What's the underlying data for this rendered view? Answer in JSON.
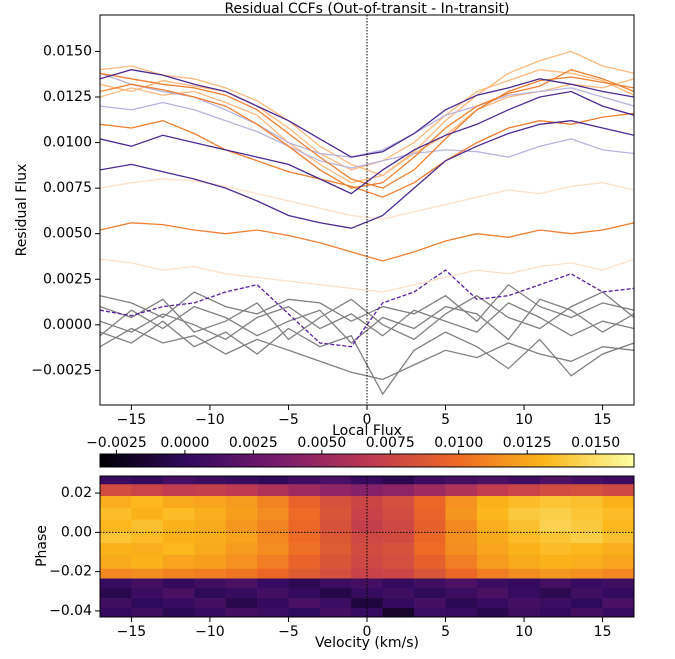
{
  "chart_data": [
    {
      "type": "line",
      "title": "Residual CCFs (Out-of-transit - In-transit)",
      "ylabel": "Residual Flux",
      "x": [
        -17,
        -15,
        -13,
        -11,
        -9,
        -7,
        -5,
        -3,
        -1,
        1,
        3,
        5,
        7,
        9,
        11,
        13,
        15,
        17
      ],
      "xlim": [
        -17,
        17
      ],
      "ylim": [
        -0.0044,
        0.017
      ],
      "xticks": [
        {
          "value": -15,
          "label": "−15"
        },
        {
          "value": -10,
          "label": "−10"
        },
        {
          "value": -5,
          "label": "−5"
        },
        0,
        5,
        10,
        15
      ],
      "yticks": [
        {
          "value": -0.0025,
          "label": "−0.0025"
        },
        {
          "value": 0,
          "label": "0.0000"
        },
        {
          "value": 0.0025,
          "label": "0.0025"
        },
        {
          "value": 0.005,
          "label": "0.0050"
        },
        {
          "value": 0.0075,
          "label": "0.0075"
        },
        {
          "value": 0.01,
          "label": "0.0100"
        },
        {
          "value": 0.0125,
          "label": "0.0125"
        },
        {
          "value": 0.015,
          "label": "0.0150"
        }
      ],
      "vline": 0,
      "series": [
        {
          "color": "#808080",
          "values": [
            0.0002,
            -0.0004,
            0.0006,
            0.0,
            -0.0008,
            0.0004,
            0.001,
            -0.0002,
            0.0006,
            -0.0006,
            0.0008,
            0.0002,
            -0.0004,
            0.0012,
            0.0004,
            -0.0006,
            0.0002,
            -0.0002
          ]
        },
        {
          "color": "#808080",
          "values": [
            -0.0006,
            0.0008,
            -0.0002,
            0.001,
            0.0004,
            -0.0006,
            0.0002,
            0.0008,
            -0.001,
            0.0004,
            -0.0002,
            0.001,
            0.0006,
            -0.0008,
            0.0014,
            0.0008,
            -0.0004,
            0.0006
          ]
        },
        {
          "color": "#808080",
          "values": [
            0.001,
            0.0004,
            0.0014,
            -0.0004,
            0.0002,
            0.0012,
            -0.0008,
            0.0004,
            0.0014,
            0.0,
            -0.0008,
            0.0006,
            0.0016,
            0.0004,
            -0.0002,
            0.001,
            0.0018,
            0.0004
          ]
        },
        {
          "color": "#808080",
          "values": [
            -0.0012,
            -0.0002,
            -0.001,
            -0.0006,
            -0.0016,
            -0.0008,
            -0.0014,
            -0.002,
            -0.0026,
            -0.003,
            -0.0022,
            -0.0014,
            -0.0018,
            -0.001,
            -0.0016,
            -0.002,
            -0.0012,
            -0.0014
          ]
        },
        {
          "color": "#808080",
          "values": [
            0.0016,
            0.0012,
            0.0004,
            0.0018,
            0.001,
            0.0006,
            0.0014,
            0.0012,
            0.0002,
            0.001,
            0.0006,
            0.0016,
            0.0002,
            0.0022,
            0.001,
            0.0004,
            0.0012,
            0.0008
          ]
        },
        {
          "color": "#808080",
          "values": [
            -0.0004,
            -0.001,
            0.0002,
            -0.0012,
            -0.0004,
            -0.0016,
            -0.0002,
            -0.0012,
            -0.0006,
            -0.0038,
            -0.0014,
            -0.0004,
            -0.0012,
            -0.0024,
            -0.0008,
            -0.0028,
            -0.0016,
            -0.001
          ]
        },
        {
          "color": "#5a1fa0",
          "dashed": true,
          "values": [
            0.0008,
            0.0005,
            0.001,
            0.0012,
            0.0018,
            0.0022,
            0.0006,
            -0.001,
            -0.0012,
            0.0012,
            0.0018,
            0.003,
            0.0014,
            0.0016,
            0.0022,
            0.0028,
            0.0018,
            0.002
          ]
        },
        {
          "color": "#fde0c8",
          "values": [
            0.0075,
            0.0078,
            0.008,
            0.0079,
            0.0076,
            0.0072,
            0.0068,
            0.0064,
            0.006,
            0.0058,
            0.0062,
            0.0066,
            0.007,
            0.0074,
            0.0072,
            0.0076,
            0.0078,
            0.0074
          ]
        },
        {
          "color": "#fde0c8",
          "values": [
            0.0036,
            0.0034,
            0.003,
            0.0032,
            0.0028,
            0.0026,
            0.0024,
            0.0022,
            0.002,
            0.0018,
            0.0022,
            0.0026,
            0.003,
            0.0028,
            0.0032,
            0.0034,
            0.003,
            0.0036
          ]
        },
        {
          "color": "#fdb97e",
          "values": [
            0.014,
            0.0142,
            0.0137,
            0.0135,
            0.013,
            0.0123,
            0.0112,
            0.0098,
            0.0088,
            0.0082,
            0.0095,
            0.0112,
            0.0126,
            0.0138,
            0.0145,
            0.015,
            0.0142,
            0.0138
          ]
        },
        {
          "color": "#fdb97e",
          "values": [
            0.0132,
            0.0128,
            0.0134,
            0.0131,
            0.0128,
            0.012,
            0.0108,
            0.0094,
            0.0085,
            0.009,
            0.01,
            0.0115,
            0.0128,
            0.0134,
            0.014,
            0.0138,
            0.0134,
            0.0126
          ]
        },
        {
          "color": "#fdb97e",
          "values": [
            0.0125,
            0.013,
            0.0126,
            0.0128,
            0.0122,
            0.0115,
            0.01,
            0.0088,
            0.0078,
            0.0082,
            0.0094,
            0.0104,
            0.0118,
            0.0125,
            0.0128,
            0.0132,
            0.013,
            0.0135
          ]
        },
        {
          "color": "#b8b3e0",
          "values": [
            0.012,
            0.0118,
            0.0122,
            0.0118,
            0.0112,
            0.0106,
            0.0098,
            0.009,
            0.0086,
            0.009,
            0.0094,
            0.0096,
            0.0095,
            0.0092,
            0.0098,
            0.0102,
            0.0096,
            0.0094
          ]
        },
        {
          "color": "#b8b3e0",
          "values": [
            0.0138,
            0.0132,
            0.0128,
            0.0125,
            0.0118,
            0.011,
            0.01,
            0.0094,
            0.0092,
            0.0096,
            0.0105,
            0.0115,
            0.012,
            0.0126,
            0.0128,
            0.013,
            0.0125,
            0.012
          ]
        },
        {
          "color": "#f07f30",
          "values": [
            0.0138,
            0.0135,
            0.0132,
            0.013,
            0.0126,
            0.0118,
            0.0105,
            0.0092,
            0.008,
            0.0075,
            0.0085,
            0.0102,
            0.0118,
            0.0128,
            0.0134,
            0.0136,
            0.0133,
            0.013
          ]
        },
        {
          "color": "#f07f30",
          "values": [
            0.0128,
            0.0132,
            0.0129,
            0.0125,
            0.012,
            0.011,
            0.0098,
            0.0085,
            0.0075,
            0.0078,
            0.0092,
            0.0108,
            0.012,
            0.0127,
            0.0131,
            0.014,
            0.0135,
            0.0128
          ]
        },
        {
          "color": "#f07f30",
          "values": [
            0.0052,
            0.0056,
            0.0055,
            0.0052,
            0.005,
            0.0052,
            0.0049,
            0.0045,
            0.004,
            0.0035,
            0.004,
            0.0046,
            0.005,
            0.0048,
            0.0052,
            0.005,
            0.0052,
            0.0056
          ]
        },
        {
          "color": "#f07f30",
          "values": [
            0.011,
            0.0108,
            0.0112,
            0.0105,
            0.0096,
            0.009,
            0.0084,
            0.008,
            0.0076,
            0.007,
            0.0078,
            0.009,
            0.01,
            0.0108,
            0.0112,
            0.011,
            0.0114,
            0.0116
          ]
        },
        {
          "color": "#4b2a91",
          "values": [
            0.0085,
            0.0088,
            0.0084,
            0.008,
            0.0075,
            0.0068,
            0.006,
            0.0056,
            0.0053,
            0.006,
            0.0075,
            0.009,
            0.0098,
            0.0105,
            0.011,
            0.0112,
            0.0108,
            0.0104
          ]
        },
        {
          "color": "#4b2a91",
          "values": [
            0.0135,
            0.014,
            0.0137,
            0.0132,
            0.0128,
            0.012,
            0.0112,
            0.0102,
            0.0092,
            0.0095,
            0.0105,
            0.0118,
            0.0126,
            0.013,
            0.0135,
            0.0132,
            0.0128,
            0.0125
          ]
        },
        {
          "color": "#4b2a91",
          "values": [
            0.0102,
            0.0098,
            0.0104,
            0.01,
            0.0096,
            0.0092,
            0.0088,
            0.008,
            0.0072,
            0.0085,
            0.0096,
            0.0104,
            0.011,
            0.0118,
            0.0125,
            0.0128,
            0.012,
            0.0115
          ]
        }
      ]
    },
    {
      "type": "heatmap",
      "xlabel": "Velocity (km/s)",
      "ylabel": "Phase",
      "x_bins": [
        -17,
        -15,
        -13,
        -11,
        -9,
        -7,
        -5,
        -3,
        -1,
        1,
        3,
        5,
        7,
        9,
        11,
        13,
        15,
        17
      ],
      "y_bins": [
        0.0287,
        0.0245,
        0.0185,
        0.0125,
        0.0065,
        0.0005,
        -0.0055,
        -0.0115,
        -0.0185,
        -0.0235,
        -0.0285,
        -0.0335,
        -0.0385,
        -0.0431
      ],
      "xlim": [
        -17,
        17
      ],
      "ylim": [
        -0.0431,
        0.0287
      ],
      "xticks": [
        {
          "value": -15,
          "label": "−15"
        },
        {
          "value": -10,
          "label": "−10"
        },
        {
          "value": -5,
          "label": "−5"
        },
        0,
        5,
        10,
        15
      ],
      "yticks": [
        {
          "value": -0.04,
          "label": "−0.04"
        },
        {
          "value": -0.02,
          "label": "−0.02"
        },
        {
          "value": 0,
          "label": "0.00"
        },
        {
          "value": 0.02,
          "label": "0.02"
        }
      ],
      "vline": 0,
      "hline": 0,
      "colorbar": {
        "label": "Local Flux",
        "lim": [
          -0.0031,
          0.0164
        ],
        "ticks": [
          {
            "value": -0.0025,
            "label": "−0.0025"
          },
          {
            "value": 0,
            "label": "0.0000"
          },
          {
            "value": 0.0025,
            "label": "0.0025"
          },
          {
            "value": 0.005,
            "label": "0.0050"
          },
          {
            "value": 0.0075,
            "label": "0.0075"
          },
          {
            "value": 0.01,
            "label": "0.0100"
          },
          {
            "value": 0.0125,
            "label": "0.0125"
          },
          {
            "value": 0.015,
            "label": "0.0150"
          }
        ],
        "colors": [
          "#000004",
          "#320a5e",
          "#781c6d",
          "#bc3754",
          "#ed6925",
          "#fbb61a",
          "#fcffa4"
        ]
      },
      "values": [
        [
          0.0005,
          0.0002,
          0.001,
          0.0006,
          0.0004,
          0.0,
          0.0008,
          0.0012,
          0.0003,
          -0.0004,
          0.0006,
          0.001,
          0.0012,
          0.0008,
          0.0015,
          0.001,
          0.0006
        ],
        [
          0.008,
          0.0075,
          0.007,
          0.0072,
          0.0068,
          0.006,
          0.0052,
          0.0045,
          0.004,
          0.0044,
          0.0052,
          0.006,
          0.007,
          0.0075,
          0.008,
          0.0082,
          0.0078
        ],
        [
          0.0128,
          0.0132,
          0.0126,
          0.0124,
          0.012,
          0.011,
          0.0096,
          0.0084,
          0.0076,
          0.0082,
          0.0098,
          0.0116,
          0.013,
          0.0134,
          0.0138,
          0.0136,
          0.013
        ],
        [
          0.0135,
          0.013,
          0.0134,
          0.0128,
          0.0122,
          0.0114,
          0.01,
          0.0086,
          0.0074,
          0.008,
          0.0096,
          0.0118,
          0.0132,
          0.014,
          0.0142,
          0.0138,
          0.0134
        ],
        [
          0.0132,
          0.0136,
          0.013,
          0.0126,
          0.0118,
          0.011,
          0.0098,
          0.0084,
          0.0072,
          0.0078,
          0.0094,
          0.0112,
          0.0128,
          0.0136,
          0.0144,
          0.014,
          0.0132
        ],
        [
          0.0138,
          0.0134,
          0.013,
          0.0128,
          0.0124,
          0.0112,
          0.01,
          0.0088,
          0.0078,
          0.008,
          0.0098,
          0.0116,
          0.0126,
          0.0134,
          0.0138,
          0.0142,
          0.0136
        ],
        [
          0.013,
          0.0128,
          0.0132,
          0.0126,
          0.012,
          0.0114,
          0.0102,
          0.009,
          0.008,
          0.0084,
          0.01,
          0.0114,
          0.0124,
          0.013,
          0.0134,
          0.0132,
          0.0128
        ],
        [
          0.0126,
          0.013,
          0.0124,
          0.0122,
          0.0116,
          0.0108,
          0.0096,
          0.0086,
          0.0078,
          0.0082,
          0.0094,
          0.0108,
          0.012,
          0.0126,
          0.013,
          0.0128,
          0.0124
        ],
        [
          0.0112,
          0.0114,
          0.011,
          0.0108,
          0.0104,
          0.0098,
          0.009,
          0.0082,
          0.0074,
          0.0076,
          0.0086,
          0.0098,
          0.0108,
          0.0114,
          0.0118,
          0.0116,
          0.0112
        ],
        [
          0.0004,
          0.001,
          0.0002,
          0.0008,
          0.0012,
          0.0004,
          -0.0002,
          0.0006,
          0.001,
          0.0002,
          0.0008,
          0.0014,
          0.0006,
          0.0002,
          0.001,
          0.0004,
          0.0008
        ],
        [
          -0.0004,
          0.0006,
          0.0012,
          0.0,
          0.0004,
          0.001,
          0.0002,
          -0.0006,
          0.0004,
          0.0008,
          0.0,
          0.0006,
          0.0012,
          0.0004,
          -0.0002,
          0.0008,
          0.0002
        ],
        [
          0.0008,
          0.0,
          0.0004,
          0.001,
          -0.0004,
          0.0002,
          0.0012,
          0.0006,
          -0.001,
          0.0002,
          0.001,
          -0.0002,
          0.0004,
          0.001,
          0.0006,
          0.0,
          0.0012
        ],
        [
          0.0002,
          0.0008,
          -0.0002,
          0.0004,
          0.001,
          0.0006,
          0.0,
          0.001,
          0.0004,
          -0.0016,
          0.0006,
          0.0004,
          -0.0004,
          0.0008,
          0.0002,
          0.001,
          0.0004
        ]
      ]
    }
  ]
}
